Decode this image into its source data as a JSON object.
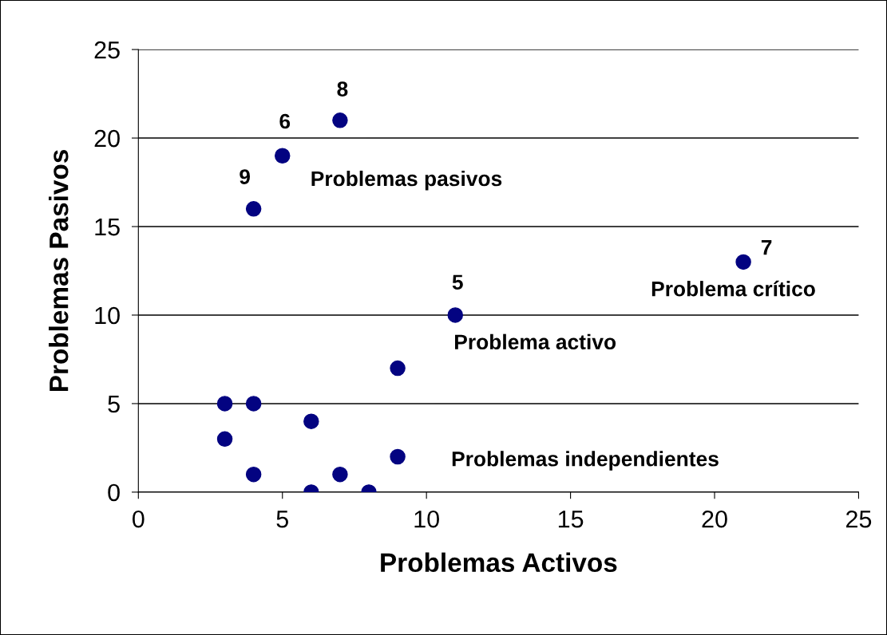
{
  "chart_data": {
    "type": "scatter",
    "xlabel": "Problemas Activos",
    "ylabel": "Problemas Pasivos",
    "x": [
      7,
      5,
      4,
      11,
      21,
      9,
      3,
      4,
      6,
      3,
      9,
      4,
      7,
      6,
      8
    ],
    "values": [
      21,
      19,
      16,
      10,
      13,
      7,
      5,
      5,
      4,
      3,
      2,
      1,
      1,
      0,
      0
    ],
    "color": "#000080",
    "marker": "circle",
    "xlim": [
      0,
      25
    ],
    "ylim": [
      0,
      25
    ],
    "xticks": [
      0,
      5,
      10,
      15,
      20,
      25
    ],
    "yticks": [
      0,
      5,
      10,
      15,
      20,
      25
    ],
    "grid": "y",
    "annotations": [
      {
        "text": "8",
        "x": 7,
        "y": 21
      },
      {
        "text": "6",
        "x": 5,
        "y": 19
      },
      {
        "text": "9",
        "x": 4,
        "y": 16
      },
      {
        "text": "5",
        "x": 11,
        "y": 10
      },
      {
        "text": "7",
        "x": 21,
        "y": 13
      },
      {
        "text": "Problemas pasivos",
        "x": 5,
        "y": 19
      },
      {
        "text": "Problema activo",
        "x": 11,
        "y": 10
      },
      {
        "text": "Problema crítico",
        "x": 21,
        "y": 13
      },
      {
        "text": "Problemas independientes",
        "x": 9,
        "y": 2
      }
    ]
  }
}
